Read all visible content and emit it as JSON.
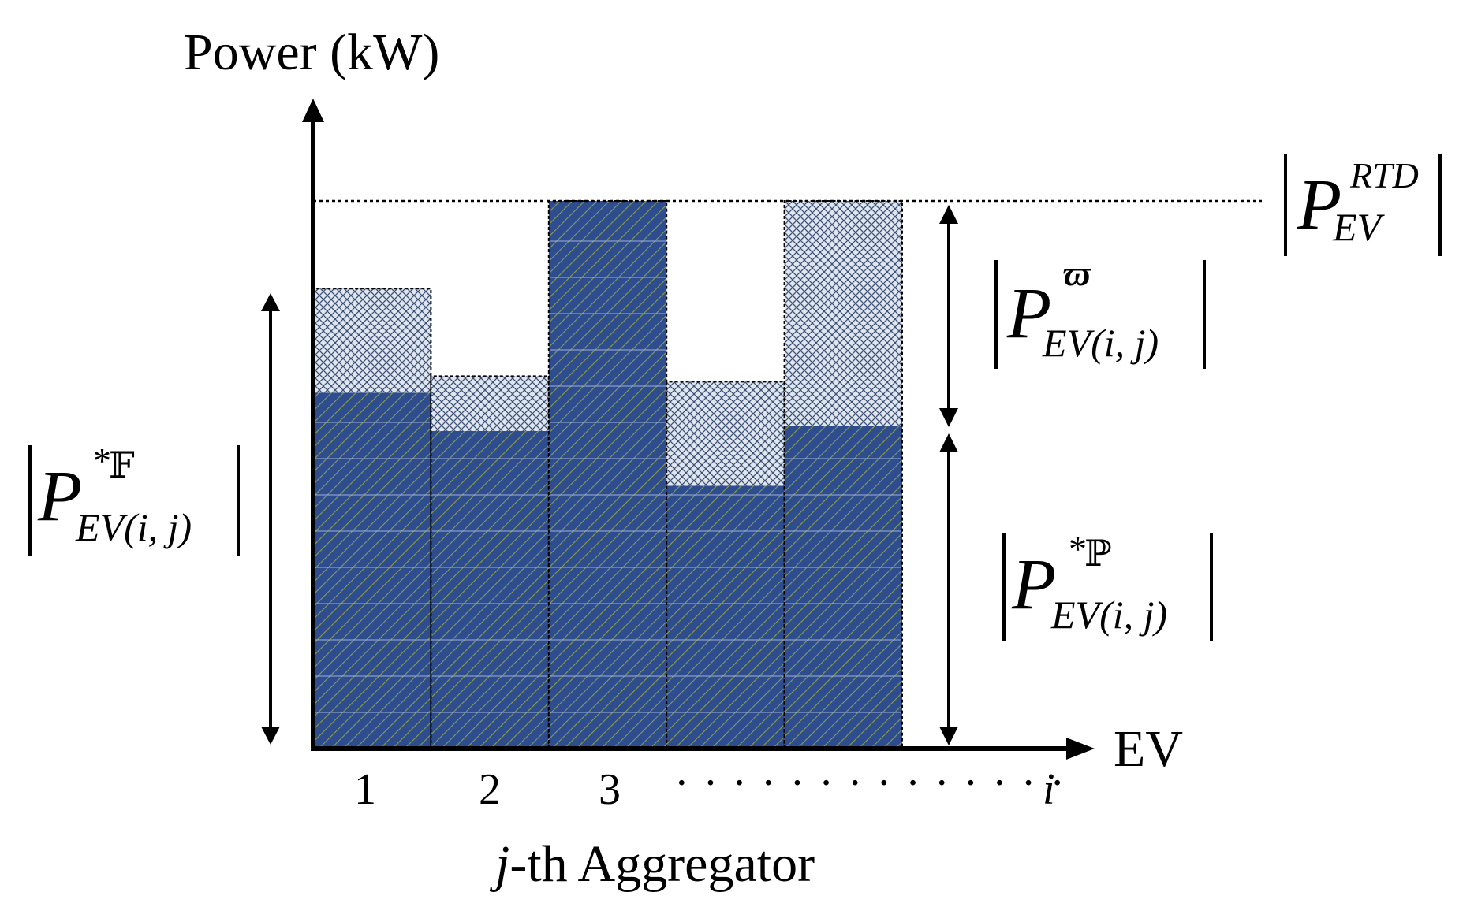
{
  "axes": {
    "y_label": "Power (kW)",
    "x_label": "EV",
    "group_label_italic": "j",
    "group_label_rest": "-th Aggregator",
    "ticks": [
      "1",
      "2",
      "3"
    ],
    "tick_ellipsis": "· · · · · · · · · · · · · ·",
    "tick_last": "i"
  },
  "labels": {
    "P": "P",
    "rtd_sup": "RTD",
    "ev_sub": "EV",
    "ev_ij_sub": "EV(i, j)",
    "omega_sup": "ϖ",
    "star": "*",
    "F_sup": "𝔽",
    "Pbb_sup": "ℙ"
  },
  "colors": {
    "bar_blue": "#2e4d8f",
    "hatch_line": "#7a8a4a",
    "crosshatch_bg": "#dce4ee",
    "crosshatch_line": "#3c4f73"
  },
  "chart_data": {
    "type": "bar",
    "stacked": true,
    "categories": [
      "1",
      "2",
      "3",
      "",
      ""
    ],
    "rtd_limit": 100,
    "series": [
      {
        "values": [
          65,
          58,
          100,
          48,
          59
        ]
      },
      {
        "values": [
          19,
          10,
          0,
          19,
          41
        ]
      }
    ]
  }
}
